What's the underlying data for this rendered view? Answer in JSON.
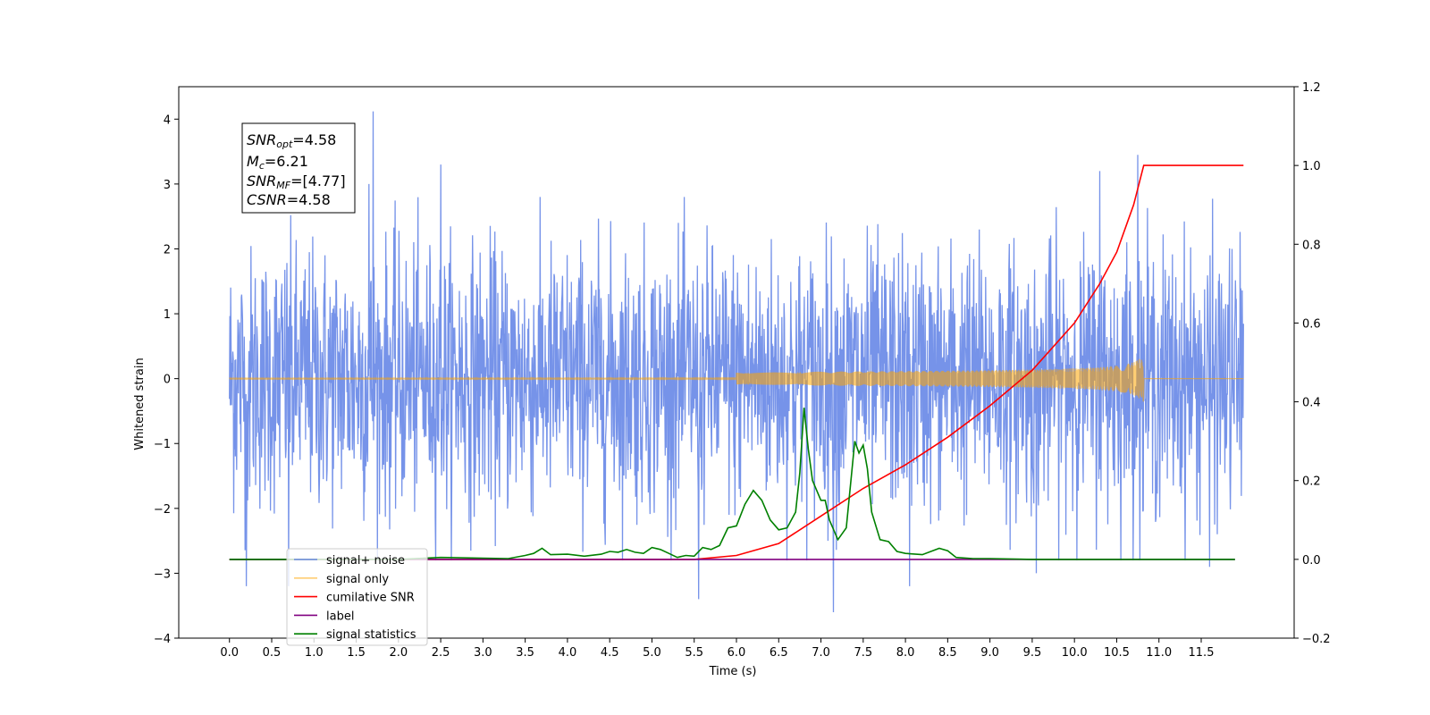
{
  "chart_data": {
    "type": "line",
    "xlabel": "Time (s)",
    "ylabel": "Whitened strain",
    "xlim": [
      -0.6,
      12.6
    ],
    "ylim": [
      -4,
      4.5
    ],
    "y2lim": [
      -0.2,
      1.2
    ],
    "x_ticks": [
      0.0,
      0.5,
      1.0,
      1.5,
      2.0,
      2.5,
      3.0,
      3.5,
      4.0,
      4.5,
      5.0,
      5.5,
      6.0,
      6.5,
      7.0,
      7.5,
      8.0,
      8.5,
      9.0,
      9.5,
      10.0,
      10.5,
      11.0,
      11.5
    ],
    "x_tick_labels": [
      "0.0",
      "0.5",
      "1.0",
      "1.5",
      "2.0",
      "2.5",
      "3.0",
      "3.5",
      "4.0",
      "4.5",
      "5.0",
      "5.5",
      "6.0",
      "6.5",
      "7.0",
      "7.5",
      "8.0",
      "8.5",
      "9.0",
      "9.5",
      "10.0",
      "10.5",
      "11.0",
      "11.5"
    ],
    "y_ticks": [
      -4,
      -3,
      -2,
      -1,
      0,
      1,
      2,
      3,
      4
    ],
    "y_tick_labels": [
      "−4",
      "−3",
      "−2",
      "−1",
      "0",
      "1",
      "2",
      "3",
      "4"
    ],
    "y2_ticks": [
      -0.2,
      0.0,
      0.2,
      0.4,
      0.6,
      0.8,
      1.0,
      1.2
    ],
    "y2_tick_labels": [
      "−0.2",
      "0.0",
      "0.2",
      "0.4",
      "0.6",
      "0.8",
      "1.0",
      "1.2"
    ],
    "legend_placement": "lower-left",
    "grid": false,
    "annotation": {
      "lines": [
        {
          "base": "SNR",
          "sub": "opt",
          "value": "=4.58"
        },
        {
          "base": "M",
          "sub": "c",
          "value": "=6.21"
        },
        {
          "base": "SNR",
          "sub": "MF",
          "value": "=[4.77]"
        },
        {
          "base": "CSNR",
          "sub": "",
          "value": "=4.58"
        }
      ]
    },
    "series": [
      {
        "name": "signal+ noise",
        "color": "#4169e1",
        "axis": "left",
        "style": "noise",
        "x_range": [
          0.0,
          12.0
        ],
        "typical_amplitude": 1.4,
        "peaks": [
          {
            "x": 1.7,
            "y": 4.12
          },
          {
            "x": 10.75,
            "y": 3.45
          },
          {
            "x": 2.5,
            "y": 3.3
          },
          {
            "x": 1.65,
            "y": 3.0
          },
          {
            "x": 0.7,
            "y": -3.2
          },
          {
            "x": 7.15,
            "y": -3.6
          },
          {
            "x": 5.55,
            "y": -3.4
          },
          {
            "x": 11.6,
            "y": -2.9
          },
          {
            "x": 8.05,
            "y": -3.2
          },
          {
            "x": 0.2,
            "y": -3.2
          },
          {
            "x": 9.55,
            "y": -3.0
          },
          {
            "x": 10.3,
            "y": 3.2
          }
        ]
      },
      {
        "name": "signal only",
        "color": "#ffa500",
        "axis": "left",
        "style": "chirp",
        "x_range": [
          0.0,
          12.0
        ],
        "merger_time": 10.82,
        "peak_amplitude": 0.4
      },
      {
        "name": "cumilative SNR",
        "color": "#ff0000",
        "axis": "right",
        "x": [
          0.0,
          5.5,
          6.0,
          6.5,
          7.0,
          7.5,
          8.0,
          8.5,
          9.0,
          9.5,
          10.0,
          10.3,
          10.5,
          10.7,
          10.82,
          12.0
        ],
        "values": [
          0.0,
          0.0,
          0.01,
          0.04,
          0.11,
          0.18,
          0.24,
          0.31,
          0.39,
          0.48,
          0.6,
          0.7,
          0.78,
          0.9,
          1.0,
          1.0
        ]
      },
      {
        "name": "label",
        "color": "#800080",
        "axis": "right",
        "x": [
          0.0,
          11.9
        ],
        "values": [
          0.0,
          0.0
        ]
      },
      {
        "name": "signal statistics",
        "color": "#008000",
        "axis": "right",
        "x": [
          0.0,
          2.0,
          2.5,
          3.0,
          3.3,
          3.5,
          3.6,
          3.7,
          3.8,
          4.0,
          4.2,
          4.4,
          4.5,
          4.6,
          4.7,
          4.8,
          4.9,
          5.0,
          5.1,
          5.2,
          5.3,
          5.4,
          5.5,
          5.6,
          5.7,
          5.8,
          5.9,
          6.0,
          6.1,
          6.2,
          6.3,
          6.4,
          6.5,
          6.6,
          6.7,
          6.75,
          6.8,
          6.85,
          6.9,
          7.0,
          7.05,
          7.1,
          7.2,
          7.3,
          7.4,
          7.45,
          7.5,
          7.55,
          7.6,
          7.7,
          7.8,
          7.9,
          8.0,
          8.2,
          8.4,
          8.5,
          8.6,
          8.8,
          9.0,
          9.5,
          10.0,
          11.9
        ],
        "values": [
          0.0,
          0.0,
          0.005,
          0.003,
          0.002,
          0.01,
          0.015,
          0.028,
          0.012,
          0.013,
          0.008,
          0.013,
          0.02,
          0.018,
          0.025,
          0.018,
          0.015,
          0.03,
          0.025,
          0.015,
          0.005,
          0.01,
          0.008,
          0.03,
          0.025,
          0.035,
          0.08,
          0.085,
          0.14,
          0.175,
          0.15,
          0.1,
          0.075,
          0.08,
          0.12,
          0.22,
          0.385,
          0.28,
          0.2,
          0.15,
          0.15,
          0.1,
          0.05,
          0.08,
          0.3,
          0.27,
          0.29,
          0.23,
          0.12,
          0.05,
          0.045,
          0.02,
          0.015,
          0.012,
          0.028,
          0.022,
          0.005,
          0.002,
          0.002,
          0.0,
          0.0,
          0.0
        ]
      }
    ]
  }
}
